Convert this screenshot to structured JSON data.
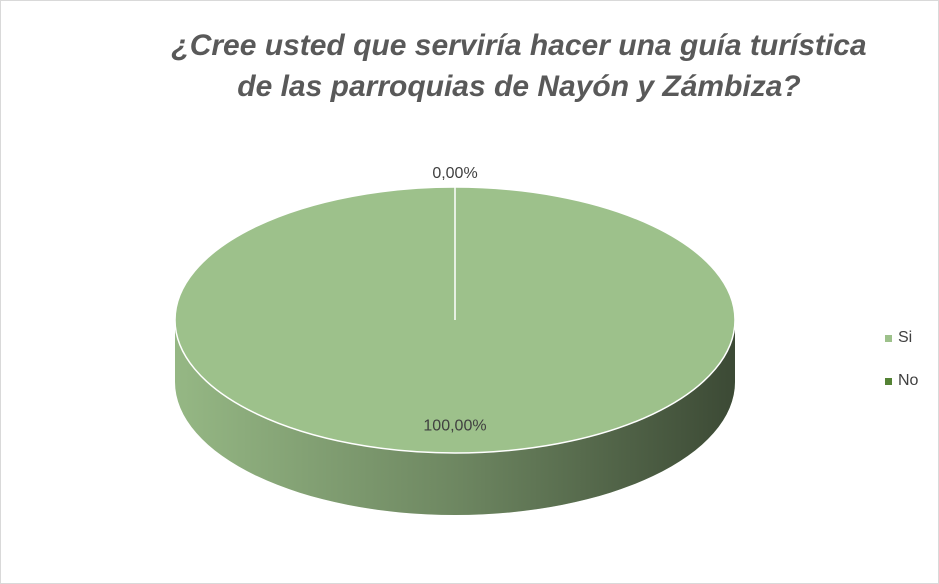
{
  "chart_data": {
    "type": "pie3d",
    "title": [
      "¿Cree usted que serviría hacer una guía turística",
      "de las parroquias de Nayón y Zámbiza?"
    ],
    "categories": [
      "Si",
      "No"
    ],
    "values": [
      100,
      0
    ],
    "value_labels": [
      "100,00%",
      "0,00%"
    ],
    "colors": [
      "#9dc18b",
      "#548235"
    ],
    "legend": "right"
  }
}
